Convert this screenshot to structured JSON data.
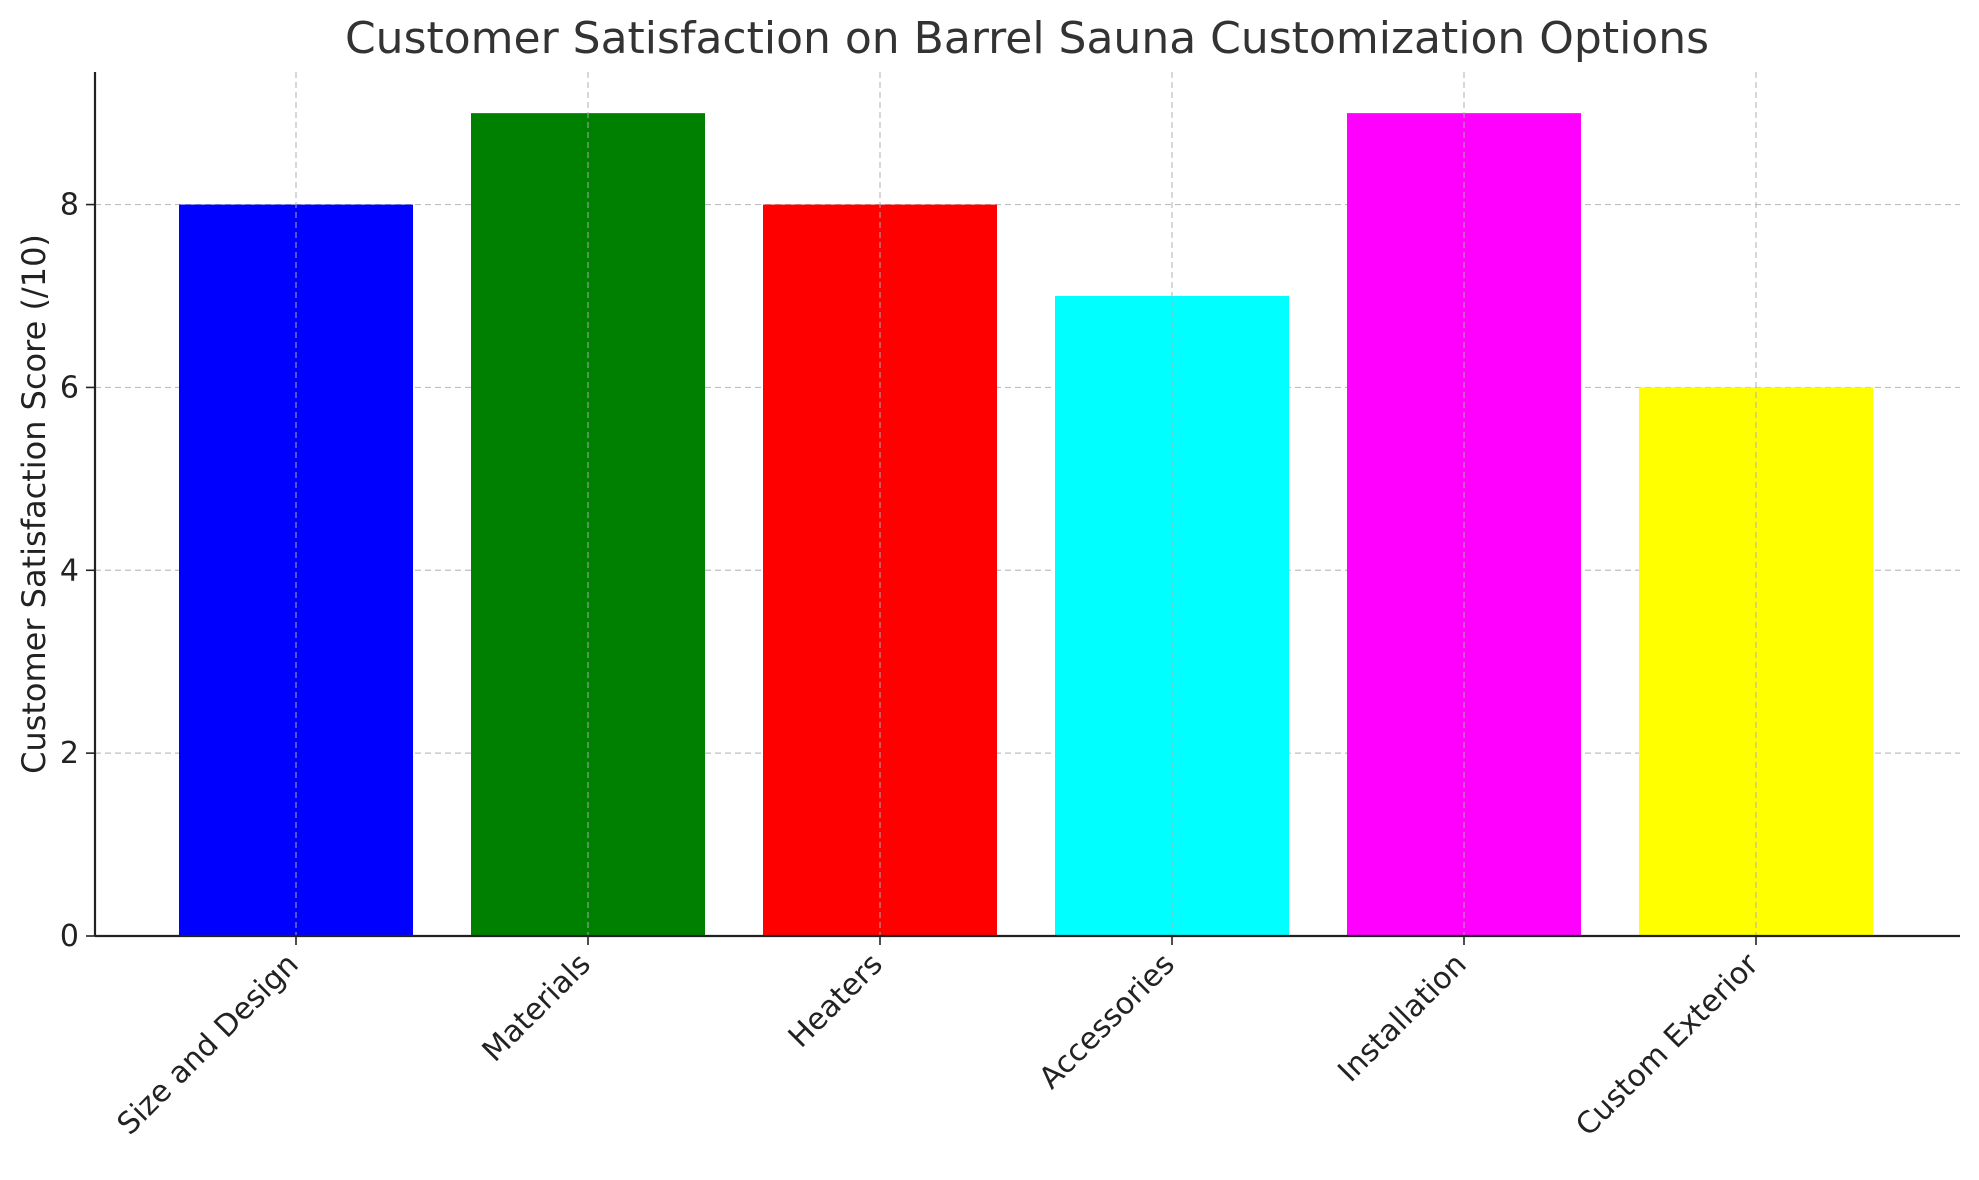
{
  "chart_data": {
    "type": "bar",
    "title": "Customer Satisfaction on Barrel Sauna Customization Options",
    "xlabel": "",
    "ylabel": "Customer Satisfaction Score (/10)",
    "categories": [
      "Size and Design",
      "Materials",
      "Heaters",
      "Accessories",
      "Installation",
      "Custom Exterior"
    ],
    "values": [
      8,
      9,
      8,
      7,
      9,
      6
    ],
    "colors": [
      "#0000ff",
      "#008000",
      "#ff0000",
      "#00ffff",
      "#ff00ff",
      "#ffff00"
    ],
    "ylim": [
      0,
      9.45
    ],
    "yticks": [
      0,
      2,
      4,
      6,
      8
    ],
    "grid": true,
    "legend": "none"
  }
}
